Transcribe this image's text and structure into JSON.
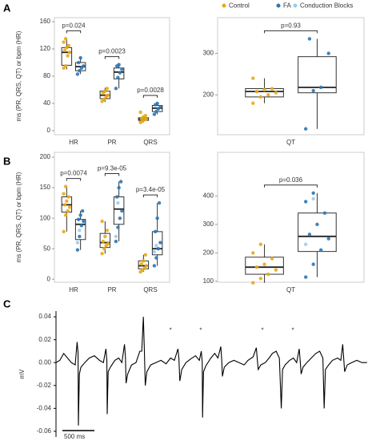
{
  "panel_labels": [
    "A",
    "B",
    "C"
  ],
  "chart_data": [
    {
      "type": "box",
      "ylabel": "ms (PR, QRS, QT) or bpm (HR)",
      "categories": [
        "HR",
        "PR",
        "QRS"
      ],
      "ylim": [
        -6,
        166
      ],
      "yticks": [
        0,
        40,
        80,
        120,
        160
      ],
      "pvalues": [
        "p=0.024",
        "p=0.0023",
        "p=0.0028"
      ],
      "series": [
        {
          "name": "Control",
          "color": "#E6AA17",
          "boxes": [
            {
              "min": 90,
              "q1": 96,
              "median": 115,
              "q3": 122,
              "max": 135
            },
            {
              "min": 42,
              "q1": 47,
              "median": 52,
              "q3": 58,
              "max": 63
            },
            {
              "min": 12,
              "q1": 15,
              "median": 17,
              "q3": 19,
              "max": 22
            }
          ],
          "points": [
            [
              92,
              95,
              110,
              115,
              118,
              122,
              125,
              130,
              135
            ],
            [
              43,
              46,
              50,
              52,
              55,
              58,
              62
            ],
            [
              12,
              14,
              16,
              17,
              18,
              20,
              22,
              27
            ]
          ]
        },
        {
          "name": "FA",
          "color": "#2B77B5",
          "boxes": [
            {
              "min": 83,
              "q1": 88,
              "median": 94,
              "q3": 100,
              "max": 107
            },
            {
              "min": 62,
              "q1": 76,
              "median": 86,
              "q3": 92,
              "max": 97
            },
            {
              "min": 24,
              "q1": 28,
              "median": 33,
              "q3": 37,
              "max": 40
            }
          ],
          "points": [
            [
              83,
              88,
              92,
              95,
              100,
              107
            ],
            [
              62,
              78,
              85,
              90,
              95,
              97
            ],
            [
              24,
              28,
              32,
              35,
              38,
              40
            ]
          ]
        }
      ]
    },
    {
      "type": "box",
      "categories": [
        "QT"
      ],
      "ylim": [
        104,
        386
      ],
      "yticks": [
        200,
        300
      ],
      "pvalues": [
        "p=0.93"
      ],
      "series": [
        {
          "name": "Control",
          "color": "#E6AA17",
          "boxes": [
            {
              "min": 180,
              "q1": 195,
              "median": 208,
              "q3": 215,
              "max": 240
            }
          ],
          "points": [
            [
              180,
              195,
              200,
              205,
              208,
              212,
              215,
              240
            ]
          ]
        },
        {
          "name": "FA",
          "color": "#2B77B5",
          "boxes": [
            {
              "min": 118,
              "q1": 205,
              "median": 218,
              "q3": 292,
              "max": 335
            }
          ],
          "points": [
            [
              118,
              210,
              218,
              300,
              335
            ]
          ]
        }
      ]
    },
    {
      "type": "box",
      "ylabel": "ms (PR, QRS, QT) or bpm (HR)",
      "categories": [
        "HR",
        "PR",
        "QRS"
      ],
      "ylim": [
        -5,
        208
      ],
      "yticks": [
        0,
        50,
        100,
        150,
        200
      ],
      "pvalues": [
        "p=0.0074",
        "p=9.3e-05",
        "p=3.4e-05"
      ],
      "series": [
        {
          "name": "Control",
          "color": "#E6AA17",
          "boxes": [
            {
              "min": 78,
              "q1": 110,
              "median": 122,
              "q3": 135,
              "max": 152
            },
            {
              "min": 42,
              "q1": 52,
              "median": 60,
              "q3": 75,
              "max": 95
            },
            {
              "min": 12,
              "q1": 17,
              "median": 22,
              "q3": 30,
              "max": 40
            }
          ],
          "points": [
            [
              78,
              105,
              112,
              118,
              122,
              128,
              135,
              140,
              152
            ],
            [
              42,
              50,
              55,
              58,
              62,
              70,
              80,
              95
            ],
            [
              12,
              15,
              18,
              22,
              25,
              30,
              40
            ]
          ]
        },
        {
          "name": "FA",
          "color": "#2B77B5",
          "boxes": [
            {
              "min": 48,
              "q1": 65,
              "median": 90,
              "q3": 98,
              "max": 112
            },
            {
              "min": 62,
              "q1": 90,
              "median": 115,
              "q3": 135,
              "max": 160
            },
            {
              "min": 22,
              "q1": 40,
              "median": 50,
              "q3": 78,
              "max": 125
            }
          ],
          "points": [
            [
              48,
              70,
              88,
              95,
              98,
              105,
              112
            ],
            [
              62,
              85,
              100,
              112,
              135,
              150,
              160
            ],
            [
              22,
              35,
              50,
              60,
              78,
              100,
              125
            ]
          ]
        },
        {
          "name": "Conduction Blocks",
          "color": "#9DCBEA",
          "points": [
            [
              60,
              80
            ],
            [
              70,
              125
            ],
            [
              45,
              55
            ]
          ]
        }
      ]
    },
    {
      "type": "box",
      "categories": [
        "QT"
      ],
      "ylim": [
        97,
        553
      ],
      "yticks": [
        100,
        200,
        300,
        400
      ],
      "pvalues": [
        "p=0.036"
      ],
      "series": [
        {
          "name": "Control",
          "color": "#E6AA17",
          "boxes": [
            {
              "min": 95,
              "q1": 125,
              "median": 150,
              "q3": 185,
              "max": 230
            }
          ],
          "points": [
            [
              95,
              110,
              125,
              140,
              150,
              160,
              180,
              200,
              230
            ]
          ]
        },
        {
          "name": "FA",
          "color": "#2B77B5",
          "boxes": [
            {
              "min": 115,
              "q1": 205,
              "median": 258,
              "q3": 340,
              "max": 410
            }
          ],
          "points": [
            [
              115,
              160,
              210,
              250,
              265,
              300,
              340,
              380,
              410
            ]
          ]
        },
        {
          "name": "Conduction Blocks",
          "color": "#9DCBEA",
          "points": [
            [
              230,
              390
            ]
          ]
        }
      ]
    },
    {
      "type": "line",
      "ylabel": "mV",
      "color": "#000000",
      "xlim": [
        0,
        4875
      ],
      "ylim": [
        -0.065,
        0.045
      ],
      "yticks": [
        0.04,
        0.02,
        {
          "value": 0,
          "label": "0.00"
        },
        -0.02,
        -0.04,
        -0.06
      ],
      "scale_bar": {
        "value": 500,
        "label": "500 ms"
      },
      "annotations": [
        {
          "text": "*",
          "x": 1790,
          "y": 0.028,
          "color": "#EE1C1C"
        },
        {
          "text": "*",
          "x": 2262,
          "y": 0.028,
          "color": "#EE1C1C"
        },
        {
          "text": "*",
          "x": 3225,
          "y": 0.028,
          "color": "#EE1C1C"
        },
        {
          "text": "*",
          "x": 3700,
          "y": 0.028,
          "color": "#EE1C1C"
        }
      ],
      "x": [
        0,
        60,
        120,
        180,
        240,
        300,
        330,
        345,
        350,
        365,
        390,
        450,
        520,
        600,
        680,
        740,
        780,
        795,
        800,
        815,
        850,
        920,
        980,
        1030,
        1070,
        1085,
        1095,
        1120,
        1180,
        1250,
        1310,
        1340,
        1365,
        1380,
        1395,
        1420,
        1480,
        1560,
        1640,
        1720,
        1790,
        1850,
        1905,
        1920,
        1935,
        1965,
        2030,
        2100,
        2180,
        2240,
        2270,
        2285,
        2290,
        2305,
        2340,
        2420,
        2480,
        2530,
        2575,
        2590,
        2600,
        2630,
        2700,
        2780,
        2860,
        2940,
        3000,
        3080,
        3130,
        3145,
        3160,
        3200,
        3270,
        3330,
        3380,
        3440,
        3490,
        3520,
        3540,
        3580,
        3650,
        3710,
        3760,
        3800,
        3815,
        3830,
        3860,
        3920,
        3990,
        4060,
        4120,
        4170,
        4190,
        4210,
        4260,
        4320,
        4400,
        4450,
        4480,
        4495,
        4510,
        4550,
        4620,
        4700,
        4780,
        4860
      ],
      "values": [
        0.0,
        0.002,
        0.008,
        0.004,
        0.0,
        -0.002,
        0.018,
        0.008,
        -0.055,
        -0.01,
        -0.004,
        0.0,
        0.004,
        0.006,
        0.002,
        0.0,
        0.012,
        0.002,
        -0.045,
        -0.008,
        -0.004,
        0.002,
        0.004,
        0.0,
        0.016,
        0.005,
        -0.018,
        -0.01,
        -0.002,
        0.0,
        0.01,
        0.01,
        0.04,
        0.012,
        -0.02,
        -0.008,
        -0.002,
        0.0,
        0.002,
        -0.001,
        0.004,
        0.002,
        0.012,
        0.004,
        -0.016,
        -0.006,
        0.0,
        0.003,
        0.006,
        0.002,
        0.01,
        0.0,
        -0.048,
        -0.008,
        -0.003,
        0.004,
        0.008,
        0.004,
        0.014,
        0.002,
        -0.012,
        -0.004,
        0.0,
        0.002,
        0.0,
        -0.002,
        0.002,
        0.005,
        0.013,
        0.003,
        -0.006,
        -0.002,
        0.0,
        0.004,
        0.008,
        0.01,
        0.004,
        -0.04,
        -0.006,
        -0.002,
        0.002,
        0.004,
        0.0,
        0.012,
        0.002,
        -0.01,
        -0.004,
        0.0,
        0.004,
        0.008,
        0.01,
        0.004,
        -0.04,
        -0.006,
        -0.002,
        0.002,
        0.004,
        0.002,
        0.016,
        0.004,
        -0.008,
        -0.002,
        0.0,
        0.002,
        0.0,
        0.0
      ]
    }
  ]
}
